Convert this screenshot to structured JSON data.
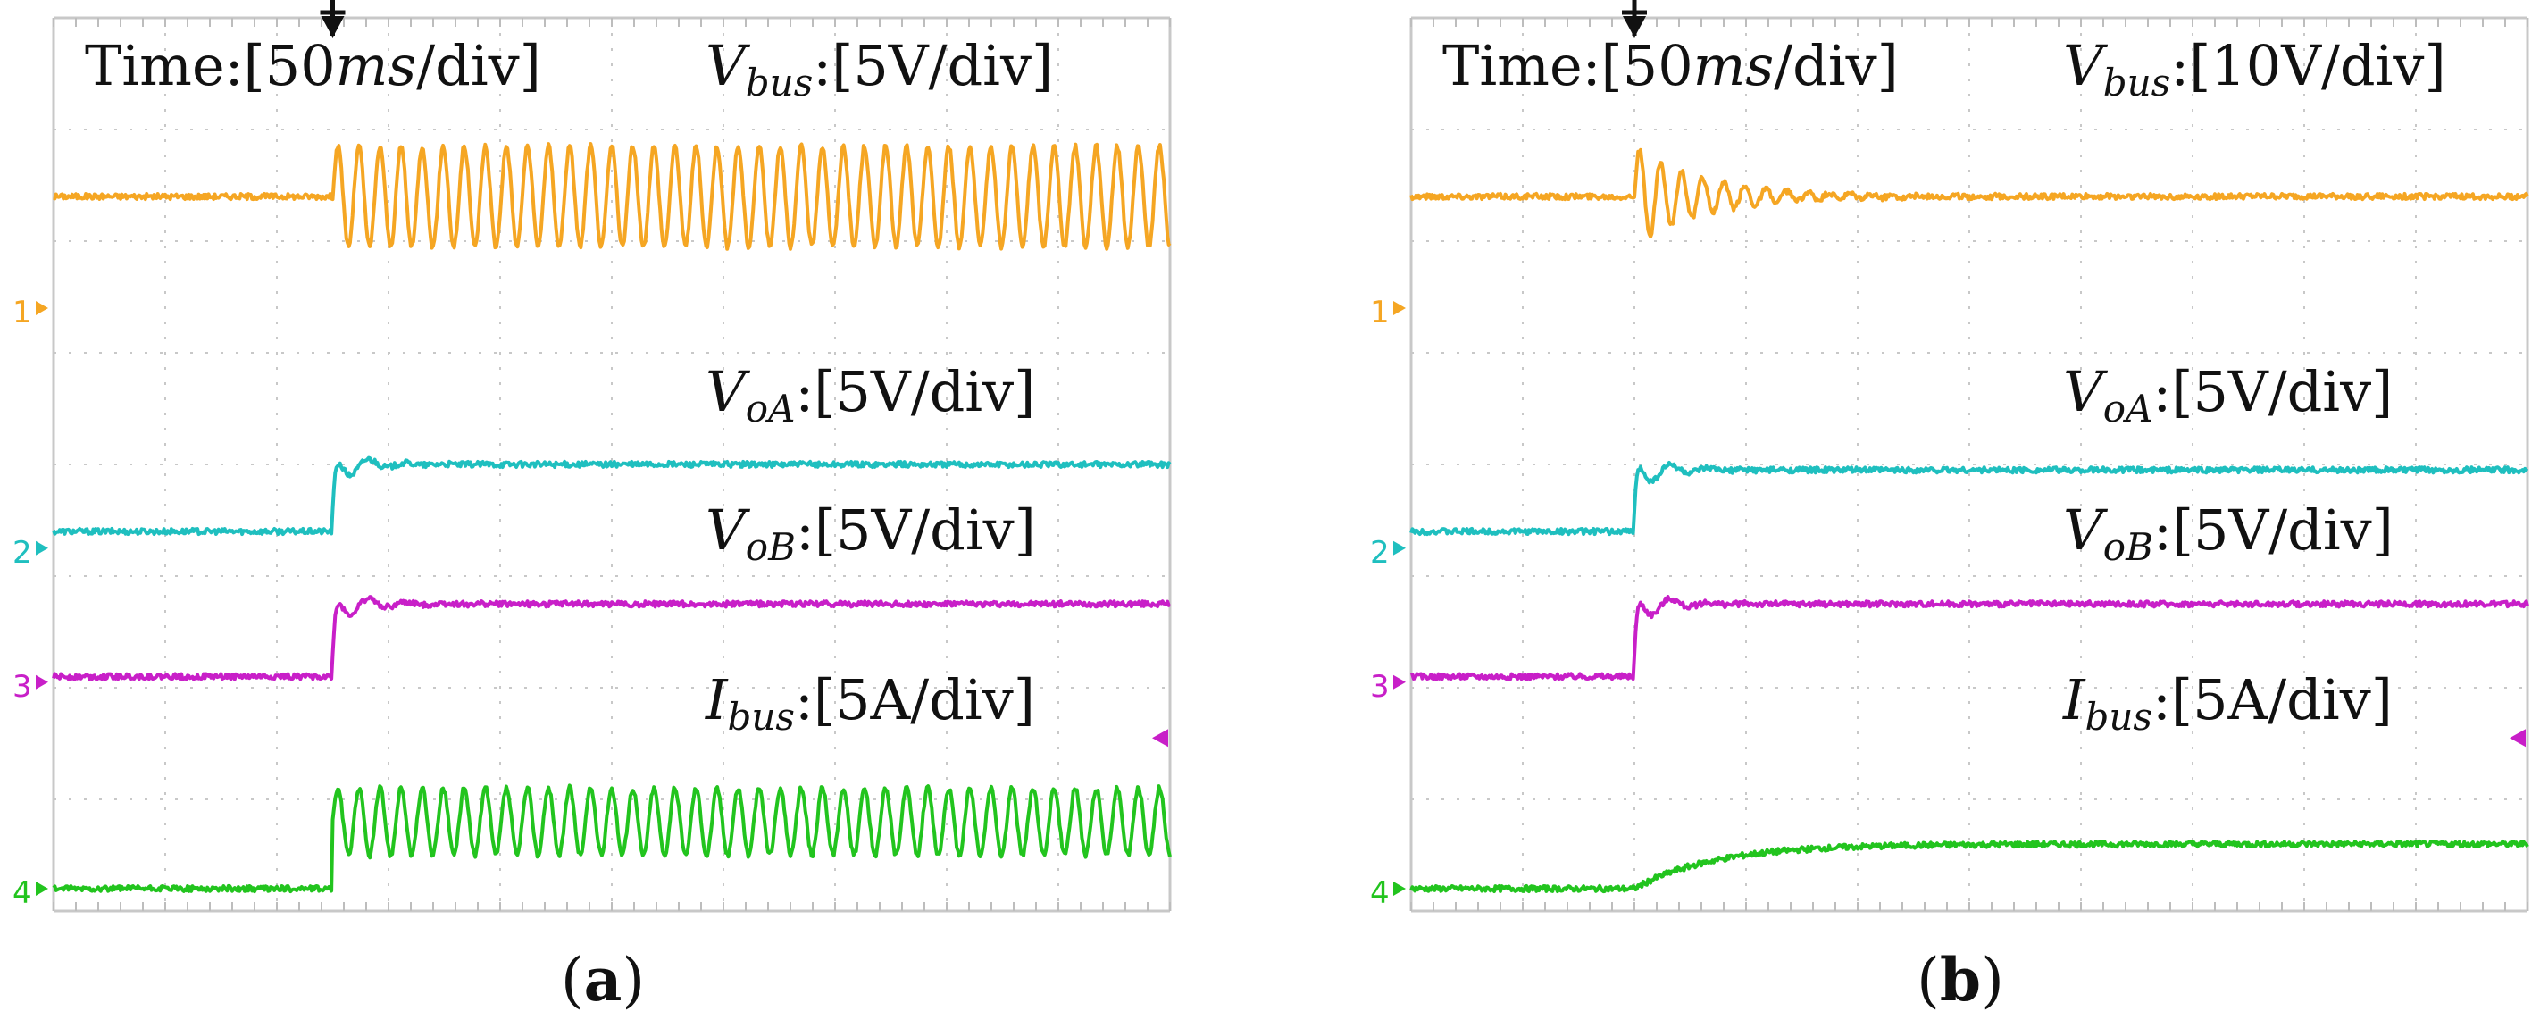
{
  "chart_data": [
    {
      "type": "line",
      "panel_label": "a",
      "time_scale": {
        "prefix": "Time:[",
        "italic": "ms",
        "number": "50",
        "suffix": "/div]"
      },
      "x": {
        "divisions": 10,
        "event_division": 2.5
      },
      "y": {
        "divisions": 8
      },
      "channels": [
        {
          "id": "1",
          "name": "V",
          "sub": "bus",
          "scale": ":[5V/div]",
          "color": "#f5a623",
          "marker_level_div": 5.4,
          "before_level_div": 6.4,
          "after_level_div": 6.4,
          "behavior": "sustained_oscillation",
          "amplitude_div": 0.45
        },
        {
          "id": "2",
          "name": "V",
          "sub": "oA",
          "scale": ":[5V/div]",
          "color": "#1fbfbf",
          "marker_level_div": 3.25,
          "before_level_div": 3.4,
          "after_level_div": 4.0,
          "behavior": "step_overshoot"
        },
        {
          "id": "3",
          "name": "V",
          "sub": "oB",
          "scale": ":[5V/div]",
          "color": "#c81fc8",
          "marker_level_div": 2.05,
          "before_level_div": 2.1,
          "after_level_div": 2.75,
          "behavior": "step_overshoot"
        },
        {
          "id": "4",
          "name": "I",
          "sub": "bus",
          "scale": ":[5A/div]",
          "color": "#22c41e",
          "marker_level_div": 0.2,
          "before_level_div": 0.2,
          "after_level_div": 0.8,
          "behavior": "sustained_oscillation",
          "amplitude_div": 0.3
        }
      ]
    },
    {
      "type": "line",
      "panel_label": "b",
      "time_scale": {
        "prefix": "Time:[",
        "italic": "ms",
        "number": "50",
        "suffix": "/div]"
      },
      "x": {
        "divisions": 10,
        "event_division": 2.0
      },
      "y": {
        "divisions": 8
      },
      "channels": [
        {
          "id": "1",
          "name": "V",
          "sub": "bus",
          "scale": ":[10V/div]",
          "color": "#f5a623",
          "marker_level_div": 5.4,
          "before_level_div": 6.4,
          "after_level_div": 6.4,
          "behavior": "damped_oscillation",
          "amplitude_div": 0.45
        },
        {
          "id": "2",
          "name": "V",
          "sub": "oA",
          "scale": ":[5V/div]",
          "color": "#1fbfbf",
          "marker_level_div": 3.25,
          "before_level_div": 3.4,
          "after_level_div": 3.95,
          "behavior": "step_overshoot"
        },
        {
          "id": "3",
          "name": "V",
          "sub": "oB",
          "scale": ":[5V/div]",
          "color": "#c81fc8",
          "marker_level_div": 2.05,
          "before_level_div": 2.1,
          "after_level_div": 2.75,
          "behavior": "step_overshoot"
        },
        {
          "id": "4",
          "name": "I",
          "sub": "bus",
          "scale": ":[5A/div]",
          "color": "#22c41e",
          "marker_level_div": 0.2,
          "before_level_div": 0.2,
          "after_level_div": 0.6,
          "behavior": "exponential_rise"
        }
      ]
    }
  ]
}
